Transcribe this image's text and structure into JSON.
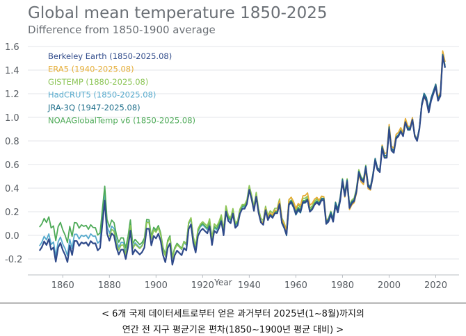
{
  "chart_data": {
    "type": "line",
    "title": "Global mean temperature 1850-2025",
    "subtitle": "Difference from 1850-1900 average",
    "xlabel": "Year",
    "ylabel": "",
    "xlim": [
      1845,
      2030
    ],
    "ylim": [
      -0.3,
      1.7
    ],
    "x_ticks": [
      1860,
      1880,
      1900,
      1920,
      1940,
      1960,
      1980,
      2000,
      2020
    ],
    "y_ticks": [
      -0.2,
      0.0,
      0.2,
      0.4,
      0.6,
      0.8,
      1.0,
      1.2,
      1.4,
      1.6
    ],
    "y_tick_labels": [
      "-0.2",
      "0.0",
      "0.2",
      "0.4",
      "0.6",
      "0.8",
      "1.0",
      "1.2",
      "1.4",
      "1.6"
    ],
    "grid": "horizontal",
    "legend_position": "top-left",
    "base_series": {
      "start_year": 1850,
      "values": [
        -0.13,
        -0.1,
        -0.05,
        -0.08,
        -0.03,
        -0.12,
        -0.1,
        -0.22,
        -0.1,
        -0.06,
        -0.12,
        -0.16,
        -0.22,
        -0.08,
        -0.16,
        -0.04,
        -0.04,
        -0.08,
        -0.05,
        -0.06,
        -0.05,
        -0.08,
        -0.04,
        -0.06,
        -0.06,
        -0.12,
        -0.1,
        0.1,
        0.3,
        0.02,
        -0.04,
        0.02,
        0.0,
        -0.1,
        -0.16,
        -0.12,
        -0.12,
        -0.2,
        -0.1,
        0.04,
        -0.16,
        -0.12,
        -0.14,
        -0.16,
        -0.14,
        -0.1,
        0.06,
        0.06,
        -0.08,
        0.0,
        -0.02,
        0.02,
        -0.04,
        -0.16,
        -0.22,
        -0.1,
        -0.06,
        -0.24,
        -0.16,
        -0.12,
        -0.14,
        -0.16,
        -0.1,
        -0.12,
        0.06,
        0.1,
        -0.06,
        -0.14,
        0.0,
        0.04,
        0.06,
        0.04,
        0.02,
        0.08,
        -0.08,
        0.04,
        0.02,
        0.06,
        0.12,
        0.0,
        0.2,
        0.12,
        0.1,
        0.18,
        0.06,
        0.08,
        0.18,
        0.22,
        0.22,
        0.26,
        0.38,
        0.3,
        0.2,
        0.32,
        0.18,
        0.1,
        0.08,
        0.2,
        0.12,
        0.16,
        0.14,
        0.18,
        0.18,
        0.26,
        0.1,
        0.06,
        0.0,
        0.26,
        0.28,
        0.24,
        0.18,
        0.22,
        0.2,
        0.28,
        0.28,
        0.3,
        0.2,
        0.22,
        0.26,
        0.28,
        0.26,
        0.3,
        0.3,
        0.1,
        0.12,
        0.18,
        0.12,
        0.26,
        0.2,
        0.3,
        0.46,
        0.34,
        0.46,
        0.24,
        0.28,
        0.3,
        0.38,
        0.54,
        0.48,
        0.46,
        0.58,
        0.42,
        0.4,
        0.5,
        0.64,
        0.56,
        0.54,
        0.74,
        0.66,
        0.66,
        0.9,
        0.72,
        0.7,
        0.82,
        0.84,
        0.88,
        0.84,
        0.96,
        0.9,
        0.9,
        0.98,
        0.84,
        0.8,
        0.9,
        1.1,
        1.18,
        1.14,
        1.04,
        1.14,
        1.2,
        1.26,
        1.14,
        1.18,
        1.52,
        1.42
      ]
    },
    "series": [
      {
        "name": "Berkeley Earth (1850-2025.08)",
        "color": "#2f4a8a",
        "start_year": 1850,
        "offsets": [
          0.0,
          -0.01,
          0.0,
          -0.01,
          0.0,
          0.01,
          0.0,
          -0.01,
          0.0,
          0.0
        ]
      },
      {
        "name": "ERA5 (1940-2025.08)",
        "color": "#e5ad36",
        "start_year": 1940,
        "offsets": [
          0.0,
          0.03,
          0.04,
          0.06,
          0.02,
          -0.02,
          -0.03,
          0.04,
          0.03,
          -0.01,
          0.05
        ]
      },
      {
        "name": "GISTEMP (1880-2025.08)",
        "color": "#8cc556",
        "start_year": 1880,
        "offsets": [
          0.03,
          0.05,
          0.04,
          0.06,
          0.04,
          0.05,
          0.03,
          0.02,
          0.01,
          0.0,
          0.02
        ]
      },
      {
        "name": "HadCRUT5 (1850-2025.08)",
        "color": "#55a9cc",
        "start_year": 1850,
        "offsets": [
          0.04,
          0.05,
          0.06,
          0.05,
          0.03,
          0.02,
          0.01,
          0.0,
          -0.01,
          0.02,
          0.0
        ]
      },
      {
        "name": "JRA-3Q (1947-2025.08)",
        "color": "#1f6f8b",
        "start_year": 1947,
        "offsets": [
          0.02,
          0.0,
          -0.01,
          0.01,
          0.02,
          0.0,
          0.01,
          0.02,
          -0.01,
          0.03,
          0.01
        ]
      },
      {
        "name": "NOAAGlobalTemp v6 (1850-2025.08)",
        "color": "#4daa57",
        "start_year": 1850,
        "offsets": [
          0.2,
          0.14,
          0.1,
          0.06,
          0.04,
          0.03,
          0.02,
          0.01,
          0.0,
          0.01,
          0.0
        ]
      }
    ]
  },
  "caption": {
    "line1": "< 6개 국제 데이터세트로부터 얻은 과거부터 2025년(1~8월)까지의",
    "line2": "연간 전 지구 평균기온 편차(1850~1900년 평균 대비) >"
  }
}
